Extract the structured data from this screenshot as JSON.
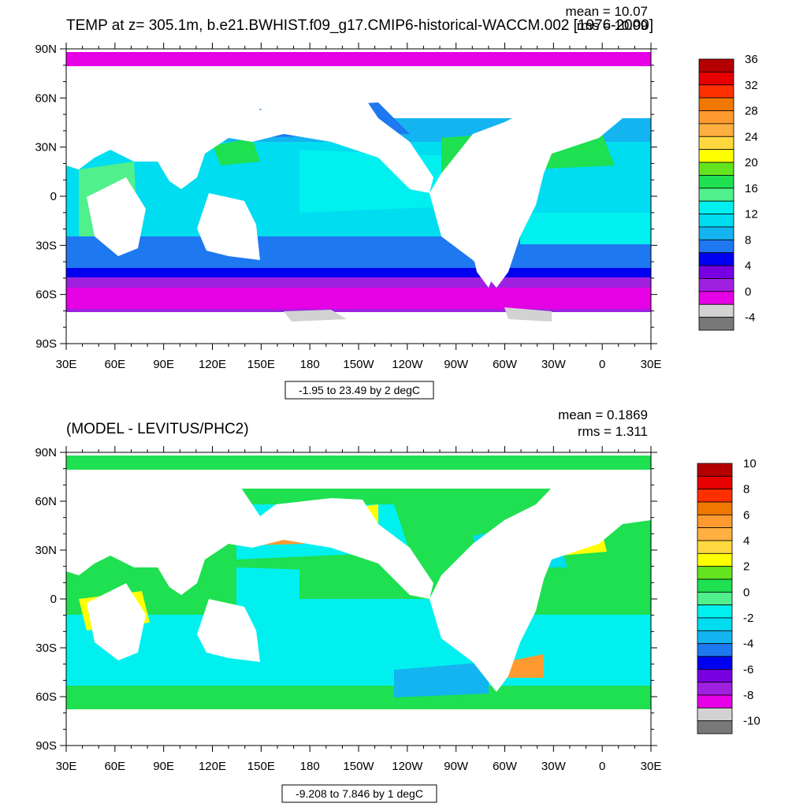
{
  "chart_data": [
    {
      "type": "heatmap",
      "title": "TEMP at z= 305.1m, b.e21.BWHIST.f09_g17.CMIP6-historical-WACCM.002 [1976-2000]",
      "mean_text": "mean = 10.07",
      "rms_text": "rms = 10.99",
      "xticks": [
        "30E",
        "60E",
        "90E",
        "120E",
        "150E",
        "180",
        "150W",
        "120W",
        "90W",
        "60W",
        "30W",
        "0",
        "30E"
      ],
      "yticks": [
        "90N",
        "60N",
        "30N",
        "0",
        "30S",
        "60S",
        "90S"
      ],
      "xlim": [
        30,
        390
      ],
      "ylim": [
        -90,
        90
      ],
      "colorbar_labels": [
        "36",
        "32",
        "28",
        "24",
        "20",
        "16",
        "12",
        "8",
        "4",
        "0",
        "-4"
      ],
      "colorbar_colors": [
        "#b40000",
        "#e60000",
        "#ff3000",
        "#f07800",
        "#ff9a30",
        "#ffb040",
        "#ffd840",
        "#ffff00",
        "#64e41e",
        "#1ee050",
        "#50f08c",
        "#00f0f0",
        "#00dcf0",
        "#14b4f0",
        "#1e78f0",
        "#0000f0",
        "#7800e0",
        "#a020e0",
        "#e600e6",
        "#d2d2d2",
        "#787878"
      ],
      "range_text": "-1.95 to 23.49 by 2 degC",
      "grid": false
    },
    {
      "type": "heatmap",
      "title": "(MODEL - LEVITUS/PHC2)",
      "mean_text": "mean = 0.1869",
      "rms_text": "rms = 1.311",
      "xticks": [
        "30E",
        "60E",
        "90E",
        "120E",
        "150E",
        "180",
        "150W",
        "120W",
        "90W",
        "60W",
        "30W",
        "0",
        "30E"
      ],
      "yticks": [
        "90N",
        "60N",
        "30N",
        "0",
        "30S",
        "60S",
        "90S"
      ],
      "xlim": [
        30,
        390
      ],
      "ylim": [
        -90,
        90
      ],
      "colorbar_labels": [
        "10",
        "8",
        "6",
        "4",
        "2",
        "0",
        "-2",
        "-4",
        "-6",
        "-8",
        "-10"
      ],
      "colorbar_colors": [
        "#b40000",
        "#e60000",
        "#ff3000",
        "#f07800",
        "#ff9a30",
        "#ffb040",
        "#ffd840",
        "#ffff00",
        "#64e41e",
        "#1ee050",
        "#50f08c",
        "#00f0f0",
        "#00dcf0",
        "#14b4f0",
        "#1e78f0",
        "#0000f0",
        "#7800e0",
        "#a020e0",
        "#e600e6",
        "#d2d2d2",
        "#787878"
      ],
      "range_text": "-9.208 to 7.846 by 1 degC",
      "grid": false
    }
  ]
}
